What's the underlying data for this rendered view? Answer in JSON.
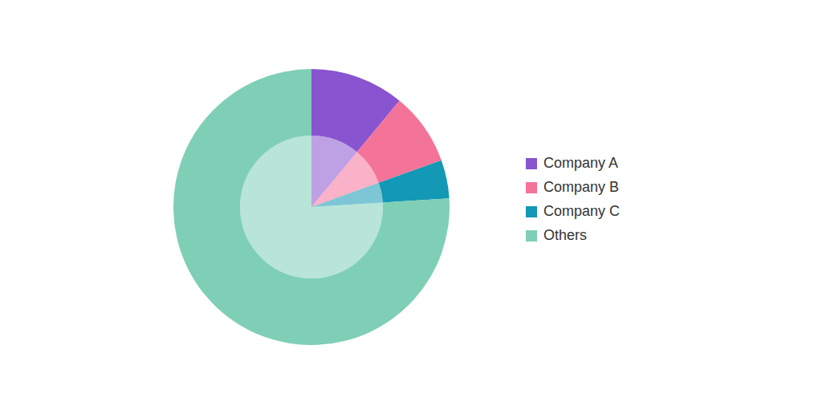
{
  "chart_data": {
    "type": "pie",
    "categories": [
      "Company A",
      "Company B",
      "Company C",
      "Others"
    ],
    "values": [
      11,
      8.5,
      4.5,
      76
    ],
    "colors": [
      "#8854d0",
      "#f47399",
      "#1398b5",
      "#7ecfb6"
    ],
    "legend": "right"
  }
}
